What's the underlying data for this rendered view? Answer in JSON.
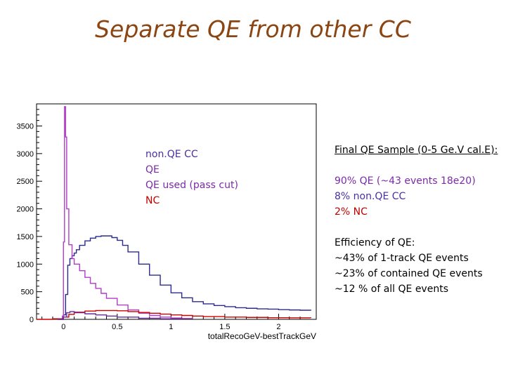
{
  "page": {
    "title": "Separate QE from other CC"
  },
  "legend": {
    "items": [
      {
        "label": "non.QE CC",
        "color": "#7b2aa8"
      },
      {
        "label": "QE",
        "color": "#2b2b8c"
      },
      {
        "label": "QE used (pass cut)",
        "color": "#7b2aa8"
      },
      {
        "label": "NC",
        "color": "#cc0000"
      }
    ]
  },
  "notes": {
    "heading": "Final QE Sample (0-5 Ge.V cal.E):",
    "stats": [
      {
        "text": "90% QE (~43 events 18e20)",
        "color": "#7b2aa8"
      },
      {
        "text": "8% non.QE CC",
        "color": "#4a2fa0"
      },
      {
        "text": "2% NC",
        "color": "#c00000"
      }
    ],
    "efficiency_heading": "Efficiency of QE:",
    "efficiency_lines": [
      "~43% of 1-track QE events",
      "~23% of contained QE events",
      "~12 % of all QE events"
    ]
  },
  "chart_data": {
    "type": "line",
    "title": "",
    "xlabel": "totalRecoGeV-bestTrackGeV",
    "ylabel": "",
    "xlim": [
      -0.25,
      2.35
    ],
    "ylim": [
      0,
      3900
    ],
    "xticks": [
      0,
      0.5,
      1,
      1.5,
      2
    ],
    "xtick_labels": [
      "0",
      "0.5",
      "1",
      "1.5",
      "2"
    ],
    "yticks": [
      0,
      500,
      1000,
      1500,
      2000,
      2500,
      3000,
      3500
    ],
    "ytick_labels": [
      "0",
      "500",
      "1000",
      "1500",
      "2000",
      "2500",
      "3000",
      "3500"
    ],
    "grid": false,
    "series": [
      {
        "name": "QE",
        "color": "#2b2b8c",
        "x": [
          -0.05,
          0.0,
          0.02,
          0.04,
          0.06,
          0.08,
          0.1,
          0.12,
          0.15,
          0.2,
          0.25,
          0.3,
          0.35,
          0.4,
          0.45,
          0.5,
          0.55,
          0.6,
          0.7,
          0.8,
          0.9,
          1.0,
          1.1,
          1.2,
          1.3,
          1.4,
          1.5,
          1.6,
          1.7,
          1.8,
          1.9,
          2.0,
          2.1,
          2.2,
          2.3
        ],
        "y": [
          0,
          80,
          450,
          980,
          1100,
          1150,
          1200,
          1260,
          1340,
          1420,
          1470,
          1500,
          1510,
          1510,
          1480,
          1430,
          1340,
          1220,
          1000,
          800,
          620,
          480,
          390,
          320,
          280,
          250,
          230,
          210,
          200,
          190,
          185,
          175,
          170,
          165,
          160
        ]
      },
      {
        "name": "QE used (pass cut)",
        "color": "#b03cc8",
        "x": [
          -0.05,
          -0.01,
          0.0,
          0.01,
          0.02,
          0.03,
          0.05,
          0.08,
          0.1,
          0.15,
          0.2,
          0.25,
          0.3,
          0.35,
          0.4,
          0.5,
          0.6,
          0.7,
          0.8,
          0.9,
          1.0,
          1.1,
          1.2
        ],
        "y": [
          0,
          60,
          1400,
          3850,
          3300,
          2000,
          1350,
          1100,
          1000,
          880,
          760,
          650,
          560,
          470,
          380,
          260,
          170,
          110,
          70,
          40,
          25,
          15,
          8
        ]
      },
      {
        "name": "NC",
        "color": "#cc0000",
        "x": [
          -0.25,
          -0.1,
          0.0,
          0.05,
          0.1,
          0.2,
          0.3,
          0.4,
          0.5,
          0.6,
          0.7,
          0.8,
          0.9,
          1.0,
          1.1,
          1.2,
          1.3,
          1.5,
          1.7,
          1.9,
          2.1,
          2.3
        ],
        "y": [
          0,
          10,
          40,
          90,
          130,
          150,
          160,
          160,
          155,
          140,
          125,
          110,
          95,
          80,
          70,
          60,
          50,
          40,
          35,
          30,
          28,
          25
        ]
      },
      {
        "name": "non.QE CC",
        "color": "#6a2a9a",
        "x": [
          -0.05,
          0.0,
          0.03,
          0.06,
          0.1,
          0.2,
          0.3,
          0.4,
          0.5,
          0.7,
          0.9,
          1.1
        ],
        "y": [
          0,
          40,
          120,
          140,
          120,
          100,
          80,
          60,
          40,
          20,
          10,
          5
        ]
      }
    ]
  }
}
